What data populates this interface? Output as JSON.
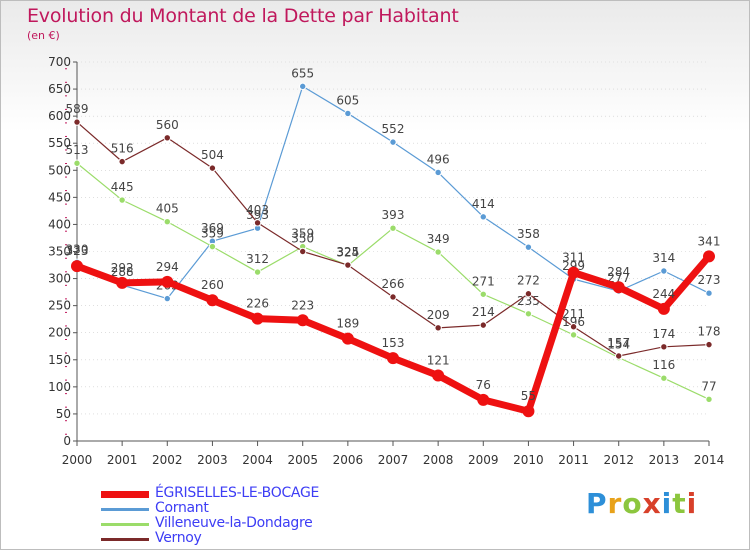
{
  "header": {
    "title": "Evolution du Montant de la Dette par Habitant",
    "unit": "(en €)"
  },
  "brand": {
    "text": "Proxiti"
  },
  "colors": {
    "title": "#c0185c",
    "legend_text": "#3d3df5",
    "axis": "#555555",
    "grid": "#cccccc"
  },
  "chart_data": {
    "type": "line",
    "title": "Evolution du Montant de la Dette par Habitant",
    "ylabel": "(en €)",
    "xlabel": "",
    "ylim": [
      0,
      700
    ],
    "ytick_step": 50,
    "yticks": [
      "0",
      "50",
      "100",
      "150",
      "200",
      "250",
      "300",
      "350",
      "400",
      "450",
      "500",
      "550",
      "600",
      "650",
      "700"
    ],
    "x": [
      "2000",
      "2001",
      "2002",
      "2003",
      "2004",
      "2005",
      "2006",
      "2007",
      "2008",
      "2009",
      "2010",
      "2011",
      "2012",
      "2013",
      "2014"
    ],
    "grid": true,
    "legend_position": "bottom-left",
    "series": [
      {
        "name": "Cornant",
        "color": "#5b9bd5",
        "width": 1.2,
        "values": [
          330,
          288,
          263,
          369,
          393,
          655,
          605,
          552,
          496,
          414,
          358,
          299,
          277,
          314,
          273
        ]
      },
      {
        "name": "Villeneuve-la-Dondagre",
        "color": "#9bdc6a",
        "width": 1.2,
        "values": [
          513,
          445,
          405,
          359,
          312,
          359,
          324,
          393,
          349,
          271,
          235,
          196,
          154,
          116,
          77
        ]
      },
      {
        "name": "Vernoy",
        "color": "#7b2a2a",
        "width": 1.2,
        "values": [
          589,
          516,
          560,
          504,
          403,
          350,
          325,
          266,
          209,
          214,
          272,
          211,
          157,
          174,
          178
        ]
      },
      {
        "name": "ÉGRISELLES-LE-BOCAGE",
        "color": "#ee1111",
        "width": 7,
        "values": [
          323,
          292,
          294,
          260,
          226,
          223,
          189,
          153,
          121,
          76,
          55,
          311,
          284,
          244,
          341
        ]
      }
    ]
  }
}
